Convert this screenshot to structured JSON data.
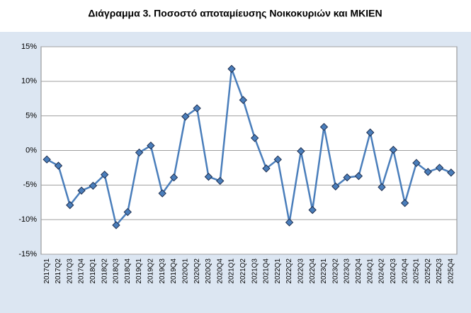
{
  "chart_data": {
    "type": "line",
    "title": "Διάγραμμα 3. Ποσοστό αποταμίευσης Νοικοκυριών και ΜΚΙΕΝ",
    "categories": [
      "2017Q1",
      "2017Q2",
      "2017Q3",
      "2017Q4",
      "2018Q1",
      "2018Q2",
      "2018Q3",
      "2018Q4",
      "2019Q1",
      "2019Q2",
      "2019Q3",
      "2019Q4",
      "2020Q1",
      "2020Q2",
      "2020Q3",
      "2020Q4",
      "2021Q1",
      "2021Q2",
      "2021Q3",
      "2021Q4",
      "2022Q1",
      "2022Q2",
      "2022Q3",
      "2022Q4",
      "2023Q1",
      "2023Q2",
      "2023Q3",
      "2023Q4",
      "2024Q1",
      "2024Q2",
      "2024Q3",
      "2024Q4",
      "2025Q1",
      "2025Q2",
      "2025Q3",
      "2025Q4"
    ],
    "values": [
      -1.3,
      -2.2,
      -7.9,
      -5.8,
      -5.1,
      -3.5,
      -10.8,
      -8.9,
      -0.3,
      0.7,
      -6.2,
      -3.9,
      4.9,
      6.1,
      -3.8,
      -4.4,
      11.8,
      7.3,
      1.8,
      -2.6,
      -1.3,
      -10.4,
      -0.1,
      -8.6,
      3.4,
      -5.2,
      -3.9,
      -3.7,
      2.6,
      -5.3,
      0.1,
      -7.6,
      -1.8,
      -3.1,
      -2.5,
      -3.2
    ],
    "color": "#4a7ebb",
    "ylim": [
      -15,
      15
    ],
    "yticks": [
      {
        "value": -15,
        "label": "-15%"
      },
      {
        "value": -10,
        "label": "-10%"
      },
      {
        "value": -5,
        "label": "-5%"
      },
      {
        "value": 0,
        "label": "0%"
      },
      {
        "value": 5,
        "label": "5%"
      },
      {
        "value": 10,
        "label": "10%"
      },
      {
        "value": 15,
        "label": "15%"
      }
    ],
    "grid": true
  }
}
